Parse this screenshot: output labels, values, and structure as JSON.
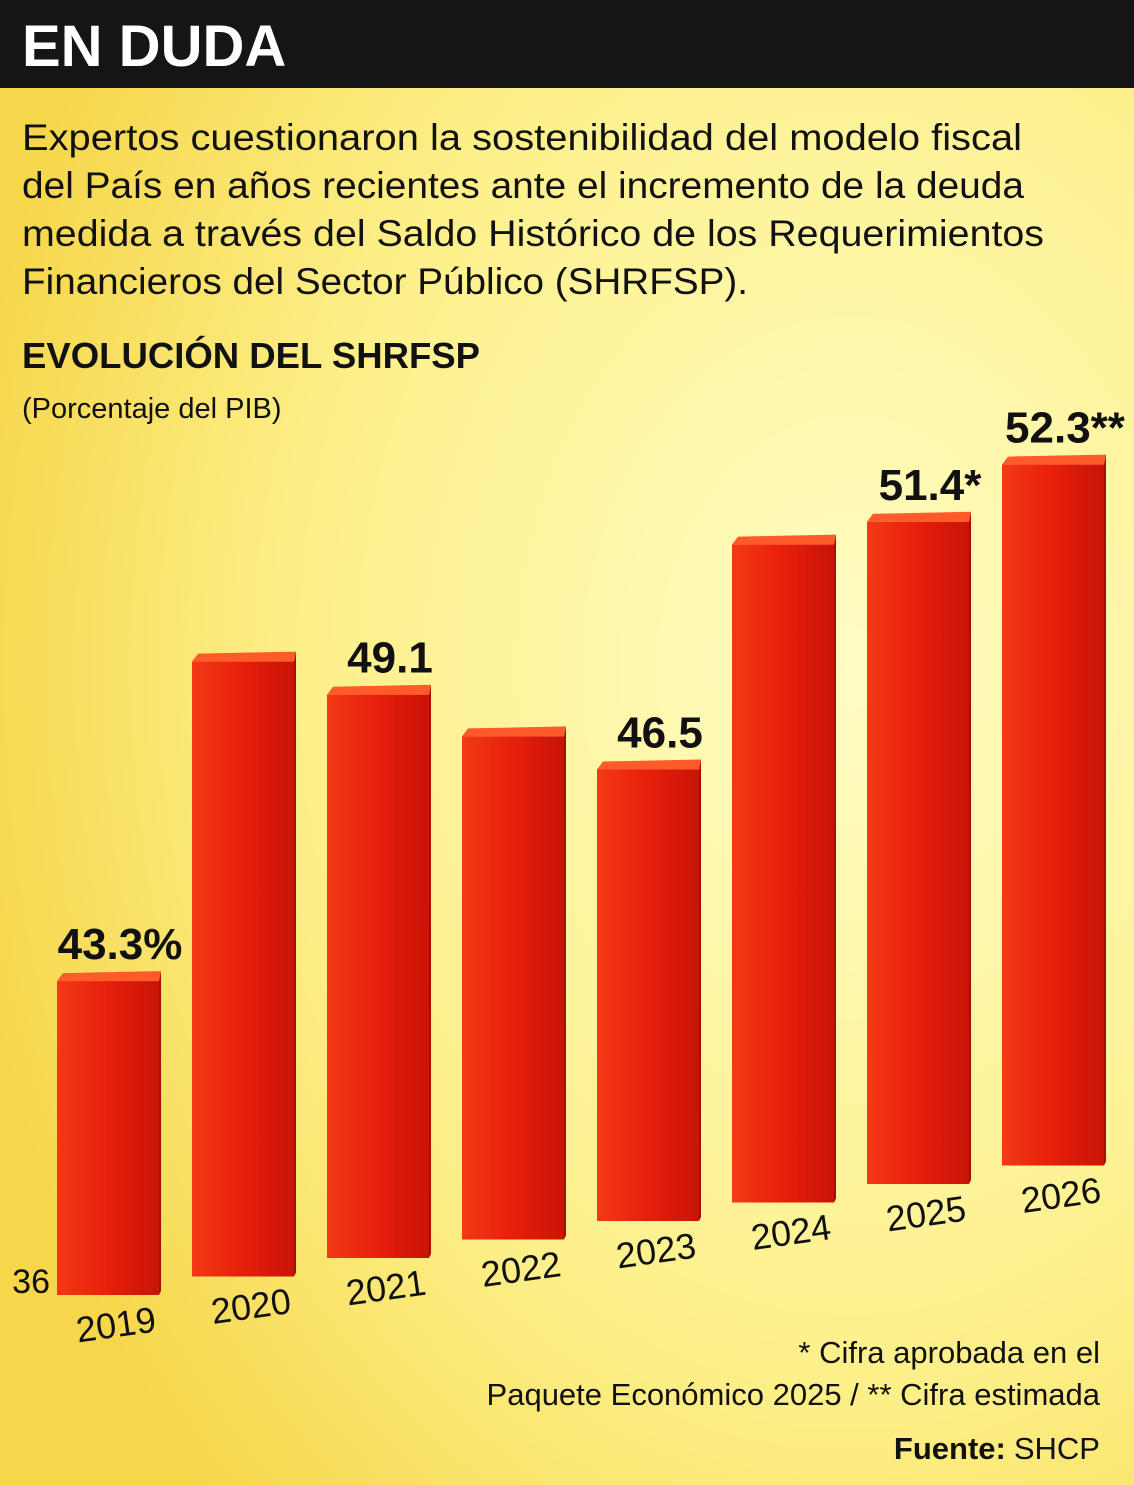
{
  "header": {
    "title": "EN DUDA"
  },
  "intro": [
    "Expertos cuestionaron la sostenibilidad del modelo fiscal",
    "del País en años recientes ante el incremento de la deuda",
    "medida a través del Saldo Histórico de los Requerimientos",
    "Financieros del Sector Público (SHRFSP)."
  ],
  "chart_data": {
    "type": "bar",
    "title": "EVOLUCIÓN DEL SHRFSP",
    "subtitle": "(Porcentaje del PIB)",
    "categories": [
      "2019",
      "2020",
      "2021",
      "2022",
      "2023",
      "2024",
      "2025",
      "2026"
    ],
    "values": [
      43.3,
      50.3,
      49.1,
      47.7,
      46.5,
      51.3,
      51.4,
      52.3
    ],
    "value_labels": [
      "43.3%",
      null,
      "49.1",
      null,
      "46.5",
      null,
      "51.4*",
      "52.3**"
    ],
    "color": "#e81e0c",
    "ylim": [
      36,
      54
    ],
    "yticks": [
      36
    ]
  },
  "footnotes": [
    "* Cifra aprobada en el",
    "Paquete Económico 2025 / ** Cifra estimada"
  ],
  "source": {
    "label": "Fuente:",
    "text": "SHCP"
  }
}
